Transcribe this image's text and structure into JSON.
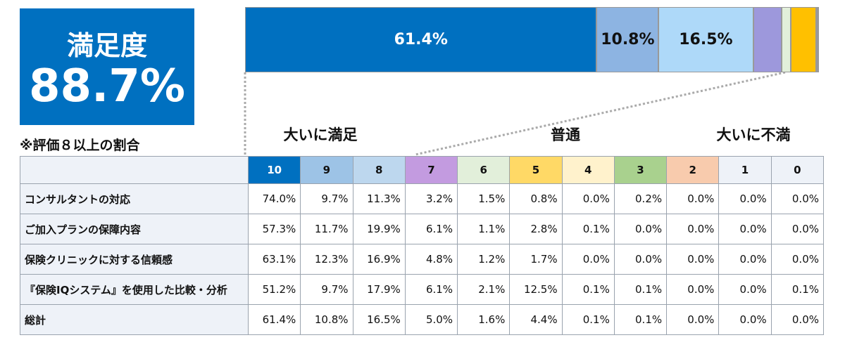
{
  "summary": {
    "title": "満足度",
    "value": "88.7%",
    "note": "※評価８以上の割合"
  },
  "bar": {
    "values": [
      61.4,
      10.8,
      16.5,
      5.0,
      1.6,
      4.4,
      0.1,
      0.1,
      0.0,
      0.0,
      0.0
    ],
    "value_labels": [
      "61.4%",
      "10.8%",
      "16.5%",
      null,
      null,
      null,
      null,
      null,
      null,
      null,
      null
    ],
    "colors": [
      "#0070c0",
      "#8db4e2",
      "#aed9f9",
      "#9d98dc",
      "#e2efda",
      "#ffc000",
      "#fff2cc",
      "#a9d18e",
      "#f8cbad",
      "#eef2f8",
      "#eef2f8"
    ],
    "label_colors": [
      "#ffffff",
      "#111111",
      "#111111",
      "#111111",
      "#111111",
      "#111111",
      "#111111",
      "#111111",
      "#111111",
      "#111111",
      "#111111"
    ]
  },
  "scale_labels": [
    "大いに満足",
    "普通",
    "大いに不満"
  ],
  "table": {
    "columns": [
      "10",
      "9",
      "8",
      "7",
      "6",
      "5",
      "4",
      "3",
      "2",
      "1",
      "0"
    ],
    "column_colors": [
      "#0070c0",
      "#9dc3e6",
      "#bdd7ee",
      "#c39be0",
      "#e2efda",
      "#ffd966",
      "#fff2cc",
      "#a9d18e",
      "#f8cbad",
      "#eef2f8",
      "#eef2f8"
    ],
    "column_text_colors": [
      "#ffffff",
      "#111111",
      "#111111",
      "#111111",
      "#111111",
      "#111111",
      "#111111",
      "#111111",
      "#111111",
      "#111111",
      "#111111"
    ],
    "rows": [
      [
        "コンサルタントの対応",
        "74.0%",
        "9.7%",
        "11.3%",
        "3.2%",
        "1.5%",
        "0.8%",
        "0.0%",
        "0.2%",
        "0.0%",
        "0.0%",
        "0.0%"
      ],
      [
        "ご加入プランの保障内容",
        "57.3%",
        "11.7%",
        "19.9%",
        "6.1%",
        "1.1%",
        "2.8%",
        "0.1%",
        "0.0%",
        "0.0%",
        "0.0%",
        "0.0%"
      ],
      [
        "保険クリニックに対する信頼感",
        "63.1%",
        "12.3%",
        "16.9%",
        "4.8%",
        "1.2%",
        "1.7%",
        "0.0%",
        "0.0%",
        "0.0%",
        "0.0%",
        "0.0%"
      ],
      [
        "『保険IQシステム』を使用した比較・分析",
        "51.2%",
        "9.7%",
        "17.9%",
        "6.1%",
        "2.1%",
        "12.5%",
        "0.1%",
        "0.1%",
        "0.0%",
        "0.0%",
        "0.1%"
      ],
      [
        "総計",
        "61.4%",
        "10.8%",
        "16.5%",
        "5.0%",
        "1.6%",
        "4.4%",
        "0.1%",
        "0.1%",
        "0.0%",
        "0.0%",
        "0.0%"
      ]
    ]
  }
}
